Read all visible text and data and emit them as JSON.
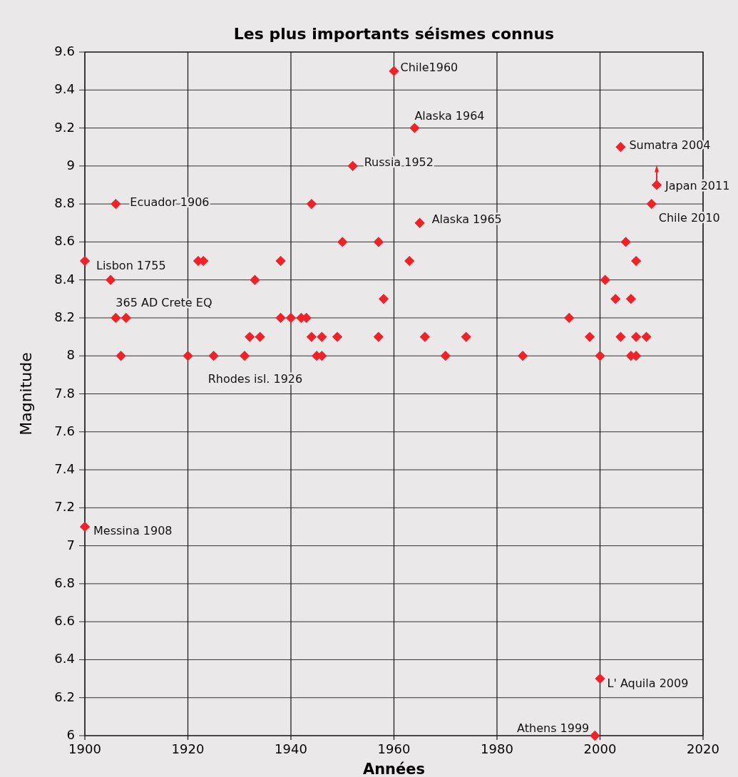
{
  "chart_data": {
    "type": "scatter",
    "title": "Les plus importants séismes connus",
    "xlabel": "Années",
    "ylabel": "Magnitude",
    "x": [
      1900,
      1900,
      1906,
      1905,
      1906,
      1908,
      1907,
      1920,
      1922,
      1923,
      1925,
      1931,
      1932,
      1934,
      1933,
      1938,
      1938,
      1940,
      1942,
      1943,
      1944,
      1944,
      1946,
      1949,
      1945,
      1946,
      1950,
      1957,
      1952,
      1958,
      1957,
      1960,
      1963,
      1964,
      1965,
      1966,
      1970,
      1974,
      1985,
      1994,
      1998,
      2000,
      2001,
      2003,
      2006,
      2004,
      2007,
      2009,
      2006,
      2007,
      2005,
      2007,
      2004,
      2011,
      2010,
      2000,
      1999
    ],
    "series": [
      {
        "color": "#ee2229",
        "values": [
          8.5,
          7.1,
          8.8,
          8.4,
          8.2,
          8.2,
          8.0,
          8.0,
          8.5,
          8.5,
          8.0,
          8.0,
          8.1,
          8.1,
          8.4,
          8.5,
          8.2,
          8.2,
          8.2,
          8.2,
          8.8,
          8.1,
          8.1,
          8.1,
          8.0,
          8.0,
          8.6,
          8.6,
          9.0,
          8.3,
          8.1,
          9.5,
          8.5,
          9.2,
          8.7,
          8.1,
          8.0,
          8.1,
          8.0,
          8.2,
          8.1,
          8.0,
          8.4,
          8.3,
          8.3,
          8.1,
          8.1,
          8.1,
          8.0,
          8.0,
          8.6,
          8.5,
          9.1,
          8.9,
          8.8,
          6.3,
          6.0
        ]
      }
    ],
    "xlim": [
      1900,
      2020
    ],
    "xticks": [
      1900,
      1920,
      1940,
      1960,
      1980,
      2000,
      2020
    ],
    "ylim": [
      6,
      9.6
    ],
    "yticks": [
      6,
      6.2,
      6.4,
      6.6,
      6.8,
      7,
      7.2,
      7.4,
      7.6,
      7.8,
      8,
      8.2,
      8.4,
      8.6,
      8.8,
      9,
      9.2,
      9.4,
      9.6
    ],
    "grid": true,
    "marker": "diamond",
    "annotations": [
      {
        "text": "Chile1960",
        "x": 1960,
        "y": 9.5
      },
      {
        "text": "Alaska 1964",
        "x": 1964,
        "y": 9.2
      },
      {
        "text": "Russia 1952",
        "x": 1952,
        "y": 9.0
      },
      {
        "text": "Sumatra 2004",
        "x": 2004,
        "y": 9.1
      },
      {
        "text": "Japan 2011",
        "x": 2011,
        "y": 8.9
      },
      {
        "text": "Chile 2010",
        "x": 2010,
        "y": 8.8
      },
      {
        "text": "Ecuador 1906",
        "x": 1906,
        "y": 8.8
      },
      {
        "text": "Alaska 1965",
        "x": 1965,
        "y": 8.7
      },
      {
        "text": "Lisbon 1755",
        "x": 1900,
        "y": 8.5
      },
      {
        "text": "365 AD Crete EQ",
        "x": 1906,
        "y": 8.2
      },
      {
        "text": "Rhodes isl. 1926",
        "x": 1925,
        "y": 8.0
      },
      {
        "text": "Messina 1908",
        "x": 1900,
        "y": 7.1
      },
      {
        "text": "L' Aquila 2009",
        "x": 2000,
        "y": 6.3
      },
      {
        "text": "Athens 1999",
        "x": 1999,
        "y": 6.0
      }
    ]
  }
}
